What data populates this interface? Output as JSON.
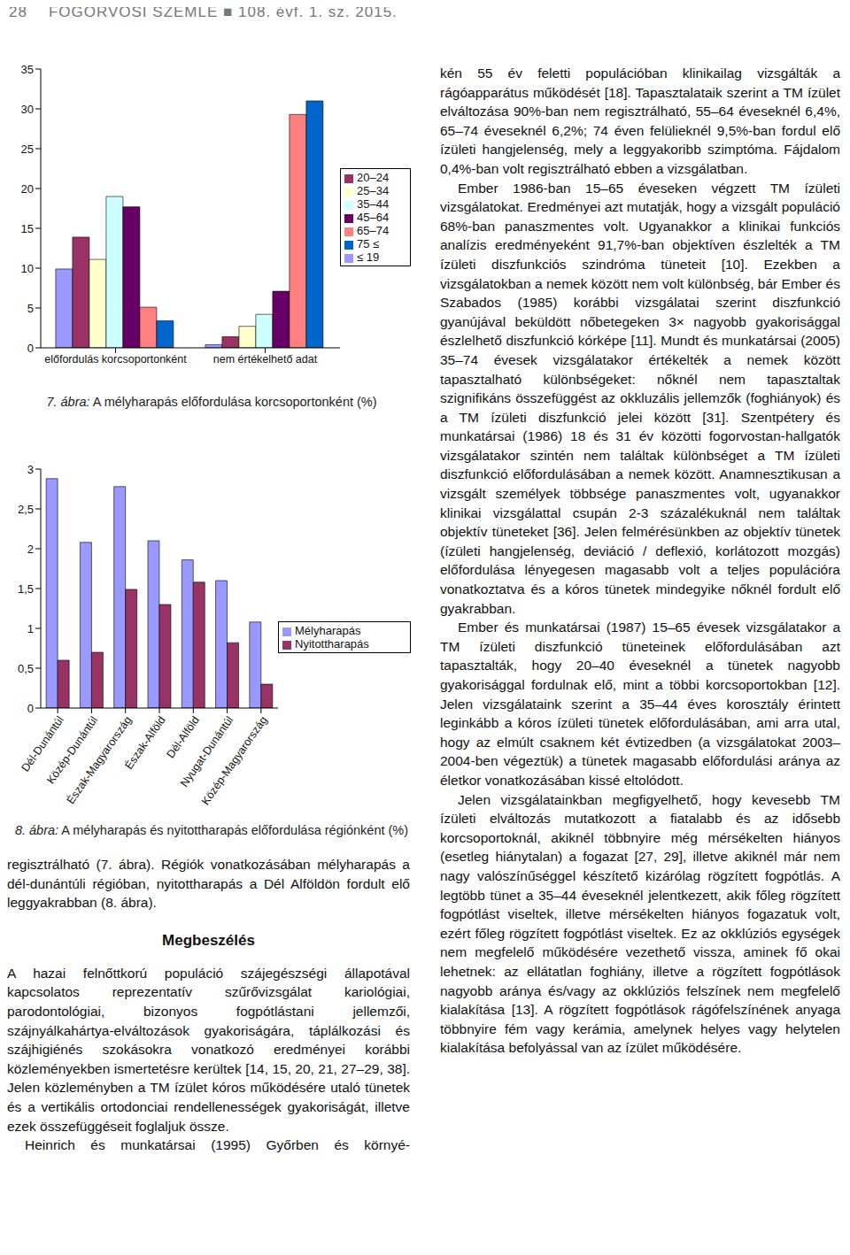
{
  "header": {
    "page": "28",
    "journal": "FOGORVOSI SZEMLE ■ 108. évf. 1. sz. 2015."
  },
  "chart_data": [
    {
      "type": "bar",
      "title": "7. ábra: A mélyharapás előfordulása korcsoportonként (%)",
      "categories": [
        "előfordulás korcsoportonként",
        "nem értékelhető adat"
      ],
      "series": [
        {
          "name": "≤ 19",
          "color": "#9999ff",
          "values": [
            9.9,
            0.4
          ]
        },
        {
          "name": "20–24",
          "color": "#993366",
          "values": [
            13.9,
            1.4
          ]
        },
        {
          "name": "25–34",
          "color": "#ffffcc",
          "values": [
            11.1,
            2.7
          ]
        },
        {
          "name": "35–44",
          "color": "#ccffff",
          "values": [
            19.0,
            4.2
          ]
        },
        {
          "name": "45–64",
          "color": "#660066",
          "values": [
            17.7,
            7.1
          ]
        },
        {
          "name": "65–74",
          "color": "#ff8080",
          "values": [
            5.1,
            29.3
          ]
        },
        {
          "name": "75 ≤",
          "color": "#0066cc",
          "values": [
            3.4,
            31.0
          ]
        }
      ],
      "ylim": [
        0,
        35
      ],
      "yticks": [
        0,
        5,
        10,
        15,
        20,
        25,
        30,
        35
      ],
      "legend": "right"
    },
    {
      "type": "bar",
      "title": "8. ábra: A mélyharapás és nyitottharapás előfordulása régiónként (%)",
      "categories": [
        "Dél-Dunántúl",
        "Közép-Dunántúl",
        "Észak-Magyarország",
        "Észak-Alföld",
        "Dél-Alföld",
        "Nyugat-Dunántúl",
        "Közép-Magyarország"
      ],
      "series": [
        {
          "name": "Mélyharapás",
          "color": "#9999ff",
          "values": [
            2.88,
            2.08,
            2.78,
            2.1,
            1.86,
            1.6,
            1.08
          ]
        },
        {
          "name": "Nyitottharapás",
          "color": "#993366",
          "values": [
            0.6,
            0.7,
            1.49,
            1.3,
            1.58,
            0.82,
            0.3
          ]
        }
      ],
      "ylim": [
        0,
        3
      ],
      "yticks": [
        0,
        {
          "value": 0.5,
          "label": "0,5"
        },
        1,
        {
          "value": 1.5,
          "label": "1,5"
        },
        2,
        {
          "value": 2.5,
          "label": "2,5"
        },
        3
      ],
      "legend": "right"
    }
  ],
  "left_column": {
    "intro": "regisztrálható (7. ábra). Régiók vonatkozásában mélyharapás a dél-dunántúli régióban, nyitottharapás a Dél Alföldön fordult elő leggyakrabban (8. ábra).",
    "heading": "Megbeszélés",
    "paragraphs": [
      "A hazai felnőttkorú populáció szájegészségi állapotával kapcsolatos reprezentatív szűrővizsgálat kariológiai, parodontológiai, bizonyos fogpótlástani jellemzői, szájnyálkahártya-elváltozások gyakoriságára, táplálkozási és szájhigiénés szokásokra vonatkozó eredményei korábbi közleményekben ismertetésre kerültek [14, 15, 20, 21, 27–29, 38]. Jelen közleményben a TM ízület kóros működésére utaló tünetek és a vertikális ortodonciai rendellenességek gyakoriságát, illetve ezek összefüggéseit foglaljuk össze.",
      "Heinrich és munkatársai (1995) Győrben és környé-"
    ]
  },
  "right_column": {
    "paragraphs": [
      "kén 55 év feletti populációban klinikailag vizsgálták a rágóapparátus működését [18]. Tapasztalataik szerint a TM ízület elváltozása 90%-ban nem regisztrálható, 55–64 éveseknél 6,4%, 65–74 éveseknél 6,2%; 74 éven felülieknél 9,5%-ban fordul elő ízületi hangjelenség, mely a leggyakoribb szimptóma. Fájdalom 0,4%-ban volt regisztrálható ebben a vizsgálatban.",
      "Ember 1986-ban 15–65 éveseken végzett TM ízületi vizsgálatokat. Eredményei azt mutatják, hogy a vizsgált populáció 68%-ban panaszmentes volt. Ugyanakkor a klinikai funkciós analízis eredményeként 91,7%-ban objektíven észlelték a TM ízületi diszfunkciós szindróma tüneteit [10]. Ezekben a vizsgálatokban a nemek között nem volt különbség, bár Ember és Szabados (1985) korábbi vizsgálatai szerint diszfunkció gyanújával beküldött nőbetegeken 3× nagyobb gyakorisággal észlelhető diszfunkció kórképe [11]. Mundt és munkatársai (2005) 35–74 évesek vizsgálatakor értékelték a nemek között tapasztalható különbségeket: nőknél nem tapasztaltak szignifikáns összefüggést az okkluzális jellemzők (foghiányok) és a TM ízületi diszfunkció jelei között [31]. Szentpétery és munkatársai (1986) 18 és 31 év közötti fogorvostan-hallgatók vizsgálatakor szintén nem találtak különbséget a TM ízületi diszfunkció előfordulásában a nemek között. Anamnesztikusan a vizsgált személyek többsége panaszmentes volt, ugyanakkor klinikai vizsgálattal csupán 2-3 százalékuknál nem találtak objektív tüneteket [36]. Jelen felmérésünkben az objektív tünetek (ízületi hangjelenség, deviáció / deflexió, korlátozott mozgás) előfordulása lényegesen magasabb volt a teljes populációra vonatkoztatva és a kóros tünetek mindegyike nőknél fordult elő gyakrabban.",
      "Ember és munkatársai (1987) 15–65 évesek vizsgálatakor a TM ízületi diszfunkció tüneteinek előfordulásában azt tapasztalták, hogy 20–40 éveseknél a tünetek nagyobb gyakorisággal fordulnak elő, mint a többi korcsoportokban [12]. Jelen vizsgálataink szerint a 35–44 éves korosztály érintett leginkább a kóros ízületi tünetek előfordulásában, ami arra utal, hogy az elmúlt csaknem két évtizedben (a vizsgálatokat 2003–2004-ben végeztük) a tünetek magasabb előfordulási aránya az életkor vonatkozásában kissé eltolódott.",
      "Jelen vizsgálatainkban megfigyelhető, hogy kevesebb TM ízületi elváltozás mutatkozott a fiatalabb és az idősebb korcsoportoknál, akiknél többnyire még mérsékelten hiányos (esetleg hiánytalan) a fogazat [27, 29], illetve akiknél már nem nagy valószínűséggel készítető kizárólag rögzített fogpótlás. A legtöbb tünet a 35–44 éveseknél jelentkezett, akik főleg rögzített fogpótlást viseltek, illetve mérsékelten hiányos fogazatuk volt, ezért főleg rögzített fogpótlást viseltek. Ez az okklúziós egységek nem megfelelő működésére vezethető vissza, aminek fő okai lehetnek: az ellátatlan foghiány, illetve a rögzített fogpótlások nagyobb aránya és/vagy az okklúziós felszínek nem megfelelő kialakítása [13]. A rögzített fogpótlások rágófelszínének anyaga többnyire fém vagy kerámia, amelynek helyes vagy helytelen kialakítása befolyással van az ízület működésére."
    ]
  }
}
